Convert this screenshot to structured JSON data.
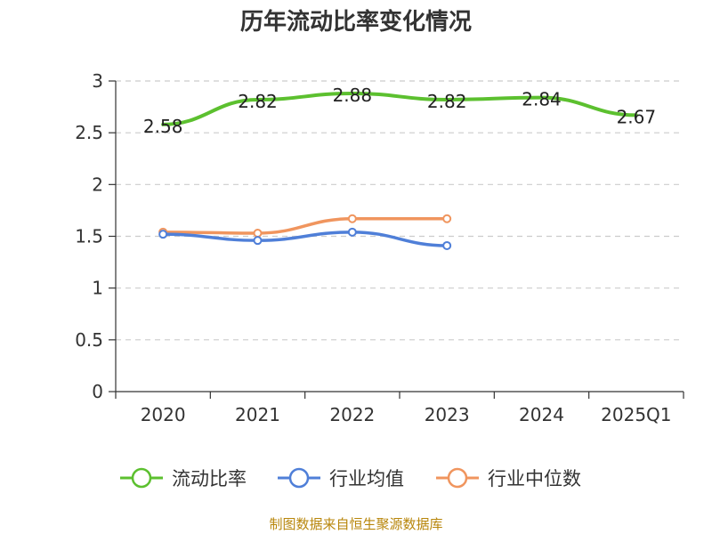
{
  "chart_data": {
    "type": "line",
    "title": "历年流动比率变化情况",
    "categories": [
      "2020",
      "2021",
      "2022",
      "2023",
      "2024",
      "2025Q1"
    ],
    "ylim": [
      0,
      3
    ],
    "yticks": [
      "0",
      "0.5",
      "1",
      "1.5",
      "2",
      "2.5",
      "3"
    ],
    "grid": true,
    "legend_position": "bottom",
    "series": [
      {
        "name": "流动比率",
        "color": "#5cc02f",
        "values": [
          2.58,
          2.82,
          2.88,
          2.82,
          2.84,
          2.67
        ],
        "labels": [
          "2.58",
          "2.82",
          "2.88",
          "2.82",
          "2.84",
          "2.67"
        ]
      },
      {
        "name": "行业均值",
        "color": "#4f7fd8",
        "values": [
          1.52,
          1.46,
          1.54,
          1.41,
          null,
          null
        ]
      },
      {
        "name": "行业中位数",
        "color": "#f0955e",
        "values": [
          1.54,
          1.53,
          1.67,
          1.67,
          null,
          null
        ]
      }
    ],
    "source": "制图数据来自恒生聚源数据库"
  }
}
